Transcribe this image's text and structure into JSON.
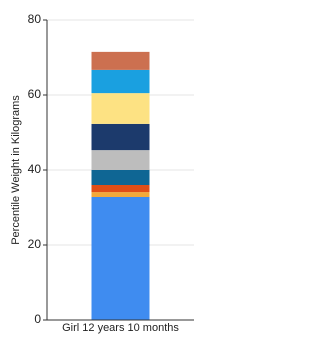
{
  "chart_data": {
    "type": "stacked_bar",
    "y_label": "Percentile Weight in Kilograms",
    "categories": [
      "Girl 12 years 10 months"
    ],
    "series": [
      {
        "color": "#3f8cf0",
        "values": [
          32.8
        ]
      },
      {
        "color": "#f2a93a",
        "values": [
          1.3
        ]
      },
      {
        "color": "#e04e17",
        "values": [
          1.9
        ]
      },
      {
        "color": "#0f6694",
        "values": [
          4.0
        ]
      },
      {
        "color": "#bdbdbd",
        "values": [
          5.3
        ]
      },
      {
        "color": "#1c3a6c",
        "values": [
          7.0
        ]
      },
      {
        "color": "#fde283",
        "values": [
          8.2
        ]
      },
      {
        "color": "#1aa0e0",
        "values": [
          6.2
        ]
      },
      {
        "color": "#cc7050",
        "values": [
          4.8
        ]
      }
    ],
    "ylim": [
      0,
      80
    ],
    "yticks": [
      0,
      20,
      40,
      60,
      80
    ],
    "grid": true
  }
}
